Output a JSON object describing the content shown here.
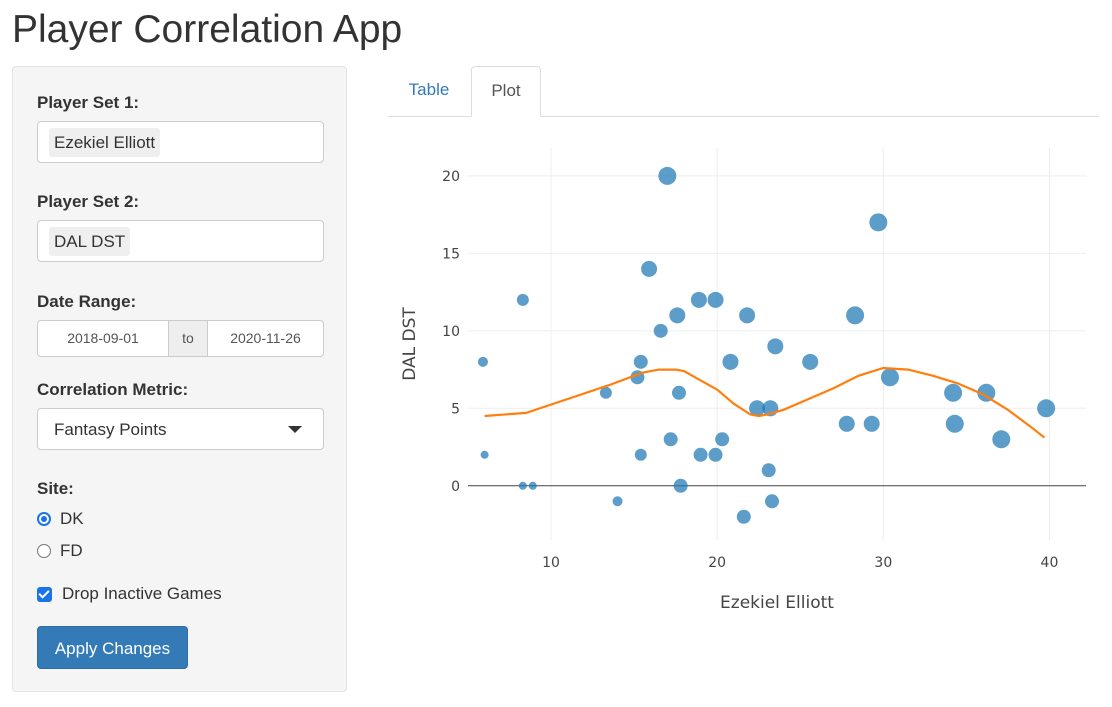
{
  "app": {
    "title": "Player Correlation App"
  },
  "sidebar": {
    "player_set_1": {
      "label": "Player Set 1:",
      "selected": "Ezekiel Elliott"
    },
    "player_set_2": {
      "label": "Player Set 2:",
      "selected": "DAL DST"
    },
    "date_range": {
      "label": "Date Range:",
      "start": "2018-09-01",
      "separator": "to",
      "end": "2020-11-26"
    },
    "correlation_metric": {
      "label": "Correlation Metric:",
      "selected": "Fantasy Points"
    },
    "site": {
      "label": "Site:",
      "options": [
        {
          "label": "DK",
          "checked": true
        },
        {
          "label": "FD",
          "checked": false
        }
      ]
    },
    "drop_inactive": {
      "label": "Drop Inactive Games",
      "checked": true
    },
    "apply_label": "Apply Changes"
  },
  "tabs": [
    {
      "label": "Table",
      "active": false
    },
    {
      "label": "Plot",
      "active": true
    }
  ],
  "colors": {
    "points": "#1f77b4",
    "trend": "#ff7f0e",
    "accent": "#337ab7",
    "radio": "#1a73e8"
  },
  "chart_data": {
    "type": "scatter",
    "xlabel": "Ezekiel Elliott",
    "ylabel": "DAL DST",
    "xlim": [
      5,
      42.2
    ],
    "ylim": [
      -3.5,
      21.8
    ],
    "xticks": [
      10,
      20,
      30,
      40
    ],
    "yticks": [
      0,
      5,
      10,
      15,
      20
    ],
    "grid": true,
    "series": [
      {
        "type": "scatter",
        "x": [
          5.9,
          6.0,
          8.3,
          8.3,
          8.9,
          13.3,
          14.0,
          15.2,
          15.4,
          15.4,
          15.9,
          16.6,
          17.0,
          17.2,
          17.6,
          17.7,
          17.8,
          18.9,
          19.0,
          19.9,
          19.9,
          20.3,
          20.8,
          21.6,
          21.8,
          22.4,
          23.1,
          23.2,
          23.3,
          23.5,
          25.6,
          27.8,
          28.3,
          29.3,
          29.7,
          30.4,
          34.2,
          34.3,
          36.2,
          37.1,
          39.8
        ],
        "y": [
          8,
          2,
          12,
          0,
          0,
          6,
          -1,
          7,
          8,
          2,
          14,
          10,
          20,
          3,
          11,
          6,
          0,
          12,
          2,
          12,
          2,
          3,
          8,
          -2,
          11,
          5,
          1,
          5,
          -1,
          9,
          8,
          4,
          11,
          4,
          17,
          7,
          6,
          4,
          6,
          3,
          5
        ],
        "sizes": [
          5,
          4,
          6,
          4,
          4,
          6,
          5,
          7,
          7,
          6,
          8,
          7,
          9,
          7,
          8,
          7,
          7,
          8,
          7,
          8,
          7,
          7,
          8,
          7,
          8,
          8,
          7,
          8,
          7,
          8,
          8,
          8,
          9,
          8,
          9,
          9,
          9,
          9,
          9,
          9,
          9
        ]
      },
      {
        "type": "line",
        "x": [
          6.0,
          8.5,
          11.0,
          13.5,
          15.5,
          16.5,
          17.5,
          18.0,
          19.0,
          20.0,
          21.0,
          22.0,
          22.5,
          23.0,
          24.0,
          25.5,
          27.0,
          28.5,
          30.0,
          31.5,
          33.0,
          34.5,
          36.0,
          37.5,
          39.0,
          39.7
        ],
        "y": [
          4.5,
          4.7,
          5.6,
          6.5,
          7.3,
          7.5,
          7.5,
          7.4,
          6.8,
          6.2,
          5.3,
          4.6,
          4.5,
          4.6,
          4.9,
          5.6,
          6.3,
          7.1,
          7.6,
          7.5,
          7.1,
          6.6,
          5.9,
          4.9,
          3.7,
          3.1
        ]
      }
    ]
  }
}
